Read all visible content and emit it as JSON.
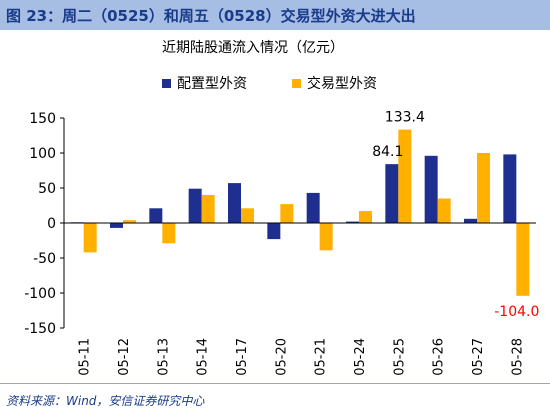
{
  "header": {
    "title": "图 23：周二（0525）和周五（0528）交易型外资大进大出"
  },
  "footer": {
    "source": "资料来源：Wind，安信证券研究中心"
  },
  "chart_data": {
    "type": "bar",
    "title": "近期陆股通流入情况（亿元）",
    "categories": [
      "05-11",
      "05-12",
      "05-13",
      "05-14",
      "05-17",
      "05-20",
      "05-21",
      "05-24",
      "05-25",
      "05-26",
      "05-27",
      "05-28"
    ],
    "series": [
      {
        "name": "配置型外资",
        "color": "#1f2f8f",
        "values": [
          1,
          -7,
          21,
          49,
          57,
          -23,
          43,
          2,
          84.1,
          96,
          6,
          98
        ]
      },
      {
        "name": "交易型外资",
        "color": "#ffb000",
        "values": [
          -42,
          4,
          -29,
          40,
          21,
          27,
          -39,
          17,
          133.4,
          35,
          100,
          -104.0
        ]
      }
    ],
    "ylim": [
      -150,
      150
    ],
    "yticks": [
      -150,
      -100,
      -50,
      0,
      50,
      100,
      150
    ],
    "data_labels": [
      {
        "series": 0,
        "index": 8,
        "text": "84.1",
        "color": "#000000"
      },
      {
        "series": 1,
        "index": 8,
        "text": "133.4",
        "color": "#000000"
      },
      {
        "series": 1,
        "index": 11,
        "text": "-104.0",
        "color": "#ff0000"
      }
    ],
    "legend": "top-left",
    "grid": false
  }
}
